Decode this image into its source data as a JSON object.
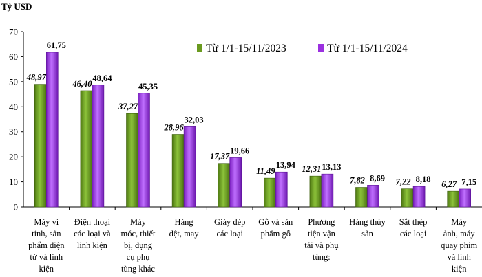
{
  "chart_data": {
    "type": "bar",
    "title": "",
    "ylabel": "Tỷ USD",
    "xlabel": "",
    "ylim": [
      0,
      70
    ],
    "yticks": [
      0,
      10,
      20,
      30,
      40,
      50,
      60,
      70
    ],
    "grid": false,
    "legend_position": "top-right",
    "categories": [
      [
        "Máy vi",
        "tính, sản",
        "phẩm điện",
        "tử và linh",
        "kiện"
      ],
      [
        "Điện thoại",
        "các loại và",
        "linh kiện"
      ],
      [
        "Máy",
        "móc, thiết",
        "bị, dụng",
        "cụ phụ",
        "tùng khác"
      ],
      [
        "Hàng",
        "dệt, may"
      ],
      [
        "Giày dép",
        "các loại"
      ],
      [
        "Gỗ và sản",
        "phẩm gỗ"
      ],
      [
        "Phương",
        "tiện vận",
        "tải và phụ",
        "tùng:"
      ],
      [
        "Hàng thủy",
        "sản"
      ],
      [
        "Sắt thép",
        "các loại"
      ],
      [
        "Máy",
        "ảnh, máy",
        "quay phim",
        "và linh",
        "kiện"
      ]
    ],
    "series": [
      {
        "name": "Từ 1/1-15/11/2023",
        "color": "#6a9a1f",
        "values": [
          48.97,
          46.4,
          37.27,
          28.96,
          17.37,
          11.49,
          12.31,
          7.82,
          7.22,
          6.27
        ],
        "labels": [
          "48,97",
          "46,40",
          "37,27",
          "28,96",
          "17,37",
          "11,49",
          "12,31",
          "7,82",
          "7,22",
          "6,27"
        ]
      },
      {
        "name": "Từ 1/1-15/11/2024",
        "color": "#9b30e0",
        "values": [
          61.75,
          48.64,
          45.35,
          32.03,
          19.66,
          13.94,
          13.13,
          8.69,
          8.18,
          7.15
        ],
        "labels": [
          "61,75",
          "48,64",
          "45,35",
          "32,03",
          "19,66",
          "13,94",
          "13,13",
          "8,69",
          "8,18",
          "7,15"
        ]
      }
    ]
  }
}
